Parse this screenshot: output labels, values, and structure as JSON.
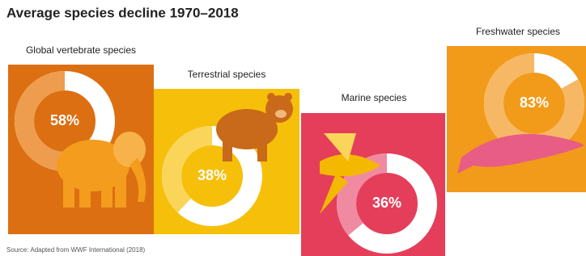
{
  "title": "Average species decline 1970–2018",
  "source": "Source: Adapted from WWF International (2018)",
  "chart_data": [
    {
      "type": "donut",
      "title": "Global vertebrate species",
      "values": [
        58
      ],
      "value_labels": [
        "58%"
      ],
      "background": "#dc6f12",
      "color": "#ee9d4e"
    },
    {
      "type": "donut",
      "title": "Terrestrial species",
      "values": [
        38
      ],
      "value_labels": [
        "38%"
      ],
      "background": "#f6bf0a",
      "color": "#fad55a"
    },
    {
      "type": "donut",
      "title": "Marine species",
      "values": [
        36
      ],
      "value_labels": [
        "36%"
      ],
      "background": "#e43e5a",
      "color": "#f08aa0"
    },
    {
      "type": "donut",
      "title": "Freshwater species",
      "values": [
        83
      ],
      "value_labels": [
        "83%"
      ],
      "background": "#f29a1a",
      "color": "#f7b865"
    }
  ]
}
